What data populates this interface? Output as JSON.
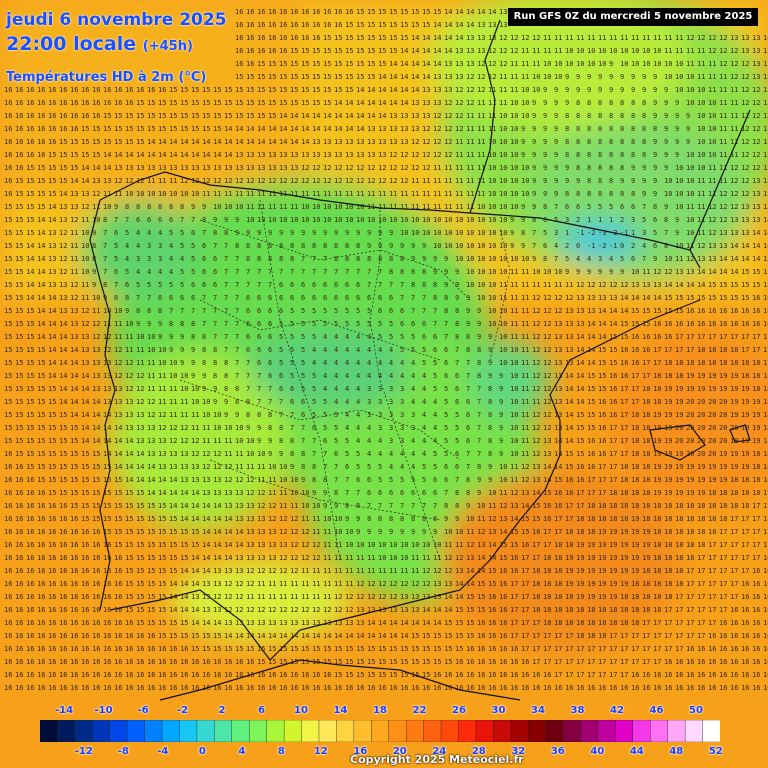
{
  "header": {
    "date_line": "jeudi 6 novembre 2025",
    "time_line": "22:00 locale",
    "run_offset": "(+45h)",
    "variable": "Températures HD à 2m (°C)"
  },
  "run_label": "Run GFS 0Z du mercredi 5 novembre 2025",
  "copyright": "Copyright 2025 Meteociel.fr",
  "legend": {
    "colors": [
      "#000b3a",
      "#001c5e",
      "#002c88",
      "#0036b8",
      "#0047e6",
      "#0061ff",
      "#0082ff",
      "#00a6ff",
      "#18c6f2",
      "#36d8d2",
      "#4ee6a8",
      "#5ff07e",
      "#7df55a",
      "#a8f53a",
      "#d3f52e",
      "#f3f448",
      "#ffe85a",
      "#ffd43c",
      "#ffbf2c",
      "#ffa81e",
      "#ff9016",
      "#ff7a10",
      "#ff620e",
      "#ff4a0c",
      "#ff2b0a",
      "#e8140a",
      "#c80a0a",
      "#a40000",
      "#880000",
      "#6e0010",
      "#840040",
      "#a00070",
      "#c000a0",
      "#e000c8",
      "#f438e8",
      "#ff70f4",
      "#ffa8fa",
      "#ffd8ff",
      "#ffffff"
    ],
    "top_labels": [
      "-14",
      "-10",
      "-6",
      "-2",
      "2",
      "6",
      "10",
      "14",
      "18",
      "22",
      "26",
      "30",
      "34",
      "38",
      "42",
      "46",
      "50"
    ],
    "bottom_labels": [
      "-12",
      "-8",
      "-4",
      "0",
      "4",
      "8",
      "12",
      "16",
      "20",
      "24",
      "28",
      "32",
      "36",
      "40",
      "44",
      "48",
      "52"
    ]
  }
}
